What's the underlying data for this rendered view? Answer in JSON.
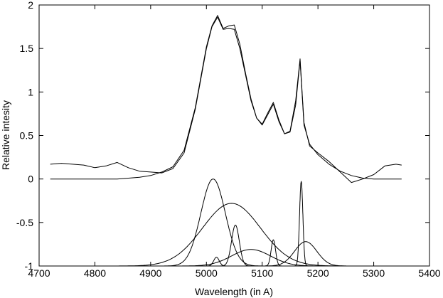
{
  "chart_data": {
    "type": "line",
    "title": "",
    "xlabel": "Wavelength (in A)",
    "ylabel": "Relative intesity",
    "xlim": [
      4700,
      5400
    ],
    "ylim": [
      -1,
      2
    ],
    "xticks": [
      4700,
      4800,
      4900,
      5000,
      5100,
      5200,
      5300,
      5400
    ],
    "yticks": [
      -1,
      -0.5,
      0,
      0.5,
      1,
      1.5,
      2
    ],
    "ytick_labels": [
      "-1",
      "-0.5",
      "0",
      "0.5",
      "1",
      "1.5",
      "2"
    ],
    "grid": false,
    "legend": "none",
    "line_color": "#000000",
    "series": [
      {
        "style": "observed-noisy",
        "x": [
          4720,
          4740,
          4760,
          4780,
          4800,
          4820,
          4840,
          4860,
          4880,
          4900,
          4920,
          4940,
          4960,
          4980,
          5000,
          5010,
          5020,
          5030,
          5040,
          5050,
          5060,
          5070,
          5080,
          5090,
          5100,
          5110,
          5120,
          5130,
          5140,
          5150,
          5160,
          5168,
          5175,
          5185,
          5200,
          5220,
          5240,
          5260,
          5280,
          5300,
          5320,
          5340,
          5350
        ],
        "y": [
          0.17,
          0.18,
          0.17,
          0.16,
          0.13,
          0.15,
          0.19,
          0.13,
          0.09,
          0.08,
          0.07,
          0.12,
          0.3,
          0.8,
          1.5,
          1.75,
          1.86,
          1.72,
          1.73,
          1.72,
          1.5,
          1.2,
          0.9,
          0.7,
          0.63,
          0.76,
          0.88,
          0.68,
          0.52,
          0.55,
          0.9,
          1.38,
          0.65,
          0.38,
          0.3,
          0.2,
          0.08,
          -0.04,
          0.0,
          0.05,
          0.15,
          0.17,
          0.16
        ]
      },
      {
        "style": "model-fit",
        "x": [
          4720,
          4760,
          4800,
          4840,
          4880,
          4900,
          4920,
          4940,
          4960,
          4980,
          5000,
          5010,
          5020,
          5030,
          5040,
          5050,
          5060,
          5070,
          5080,
          5090,
          5100,
          5110,
          5120,
          5130,
          5140,
          5150,
          5160,
          5168,
          5175,
          5185,
          5200,
          5220,
          5240,
          5260,
          5280,
          5300,
          5320,
          5340,
          5350
        ],
        "y": [
          0.0,
          0.0,
          0.0,
          0.0,
          0.02,
          0.04,
          0.08,
          0.14,
          0.33,
          0.82,
          1.52,
          1.76,
          1.88,
          1.73,
          1.76,
          1.77,
          1.55,
          1.22,
          0.92,
          0.7,
          0.62,
          0.74,
          0.86,
          0.66,
          0.52,
          0.54,
          0.85,
          1.36,
          0.62,
          0.4,
          0.28,
          0.17,
          0.09,
          0.04,
          0.01,
          0.0,
          0.0,
          0.0,
          0.0
        ]
      }
    ],
    "components": [
      {
        "center": 5012,
        "height": 1.0,
        "width": 22
      },
      {
        "center": 5045,
        "height": 0.72,
        "width": 52
      },
      {
        "center": 5052,
        "height": 0.47,
        "width": 7
      },
      {
        "center": 5080,
        "height": 0.19,
        "width": 35
      },
      {
        "center": 5120,
        "height": 0.3,
        "width": 4
      },
      {
        "center": 5170,
        "height": 0.97,
        "width": 3
      },
      {
        "center": 5178,
        "height": 0.28,
        "width": 20
      },
      {
        "center": 5018,
        "height": 0.1,
        "width": 5
      }
    ]
  }
}
